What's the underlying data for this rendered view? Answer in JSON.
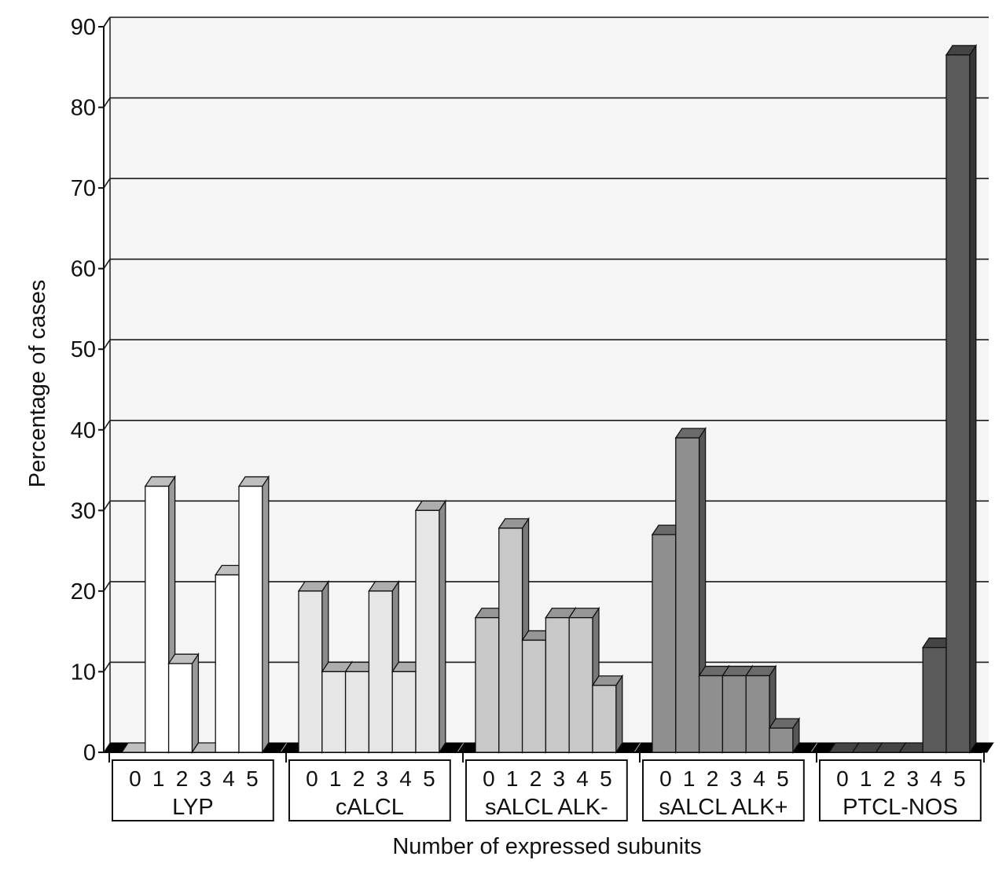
{
  "chart_data": {
    "type": "bar",
    "title": "",
    "xlabel": "Number of expressed subunits",
    "ylabel": "Percentage of cases",
    "ylim": [
      0,
      90
    ],
    "yticks": [
      "0",
      "10",
      "20",
      "30",
      "40",
      "50",
      "60",
      "70",
      "80",
      "90"
    ],
    "grid": true,
    "subunit_labels": [
      "0",
      "1",
      "2",
      "3",
      "4",
      "5"
    ],
    "groups": [
      {
        "name": "LYP",
        "color": "#ffffff",
        "values": [
          0,
          33,
          11,
          0,
          22,
          33
        ]
      },
      {
        "name": "cALCL",
        "color": "#e6e6e6",
        "values": [
          20,
          10,
          10,
          20,
          10,
          30
        ]
      },
      {
        "name": "sALCL ALK-",
        "color": "#c8c8c8",
        "values": [
          16.7,
          27.8,
          13.9,
          16.7,
          16.7,
          8.3
        ]
      },
      {
        "name": "sALCL ALK+",
        "color": "#8f8f8f",
        "values": [
          27,
          39,
          9.5,
          9.5,
          9.5,
          3
        ]
      },
      {
        "name": "PTCL-NOS",
        "color": "#5a5a5a",
        "values": [
          0,
          0,
          0,
          0,
          13,
          86.5
        ]
      }
    ]
  }
}
